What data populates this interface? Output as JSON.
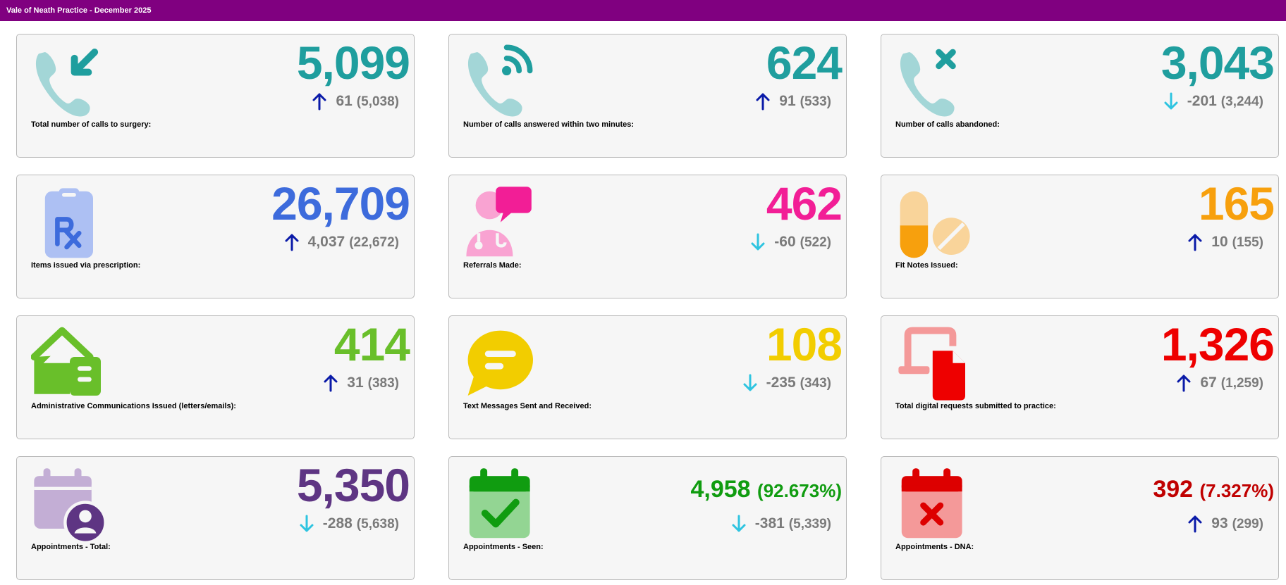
{
  "header": {
    "title": "Vale of Neath Practice - December 2025"
  },
  "colors": {
    "header_bg": "#800080",
    "arrow_up": "#0a1aa8",
    "arrow_down": "#2ec4e0",
    "muted": "#7a7a7a"
  },
  "cards": [
    {
      "label": "Total number of calls to surgery:",
      "value": "5,099",
      "value_pct": "",
      "change": "61",
      "previous": "(5,038)",
      "direction": "up",
      "value_color": "#1f9e9e",
      "icon": "phone-incoming-icon"
    },
    {
      "label": "Number of calls answered within two minutes:",
      "value": "624",
      "value_pct": "",
      "change": "91",
      "previous": "(533)",
      "direction": "up",
      "value_color": "#1f9e9e",
      "icon": "phone-signal-icon"
    },
    {
      "label": "Number of calls abandoned:",
      "value": "3,043",
      "value_pct": "",
      "change": "-201",
      "previous": "(3,244)",
      "direction": "down",
      "value_color": "#1f9e9e",
      "icon": "phone-missed-icon"
    },
    {
      "label": "Items issued via prescription:",
      "value": "26,709",
      "value_pct": "",
      "change": "4,037",
      "previous": "(22,672)",
      "direction": "up",
      "value_color": "#3d6bdc",
      "icon": "prescription-clipboard-icon"
    },
    {
      "label": "Referrals Made:",
      "value": "462",
      "value_pct": "",
      "change": "-60",
      "previous": "(522)",
      "direction": "down",
      "value_color": "#f21e96",
      "icon": "doctor-chat-icon"
    },
    {
      "label": "Fit Notes Issued:",
      "value": "165",
      "value_pct": "",
      "change": "10",
      "previous": "(155)",
      "direction": "up",
      "value_color": "#f7a00d",
      "icon": "pills-icon"
    },
    {
      "label": "Administrative Communications Issued (letters/emails):",
      "value": "414",
      "value_pct": "",
      "change": "31",
      "previous": "(383)",
      "direction": "up",
      "value_color": "#69bf2a",
      "icon": "mail-home-icon"
    },
    {
      "label": "Text Messages Sent and Received:",
      "value": "108",
      "value_pct": "",
      "change": "-235",
      "previous": "(343)",
      "direction": "down",
      "value_color": "#f2cd00",
      "icon": "speech-bubble-icon"
    },
    {
      "label": "Total digital requests submitted to practice:",
      "value": "1,326",
      "value_pct": "",
      "change": "67",
      "previous": "(1,259)",
      "direction": "up",
      "value_color": "#ee0000",
      "icon": "device-document-icon"
    },
    {
      "label": "Appointments - Total:",
      "value": "5,350",
      "value_pct": "",
      "change": "-288",
      "previous": "(5,638)",
      "direction": "down",
      "value_color": "#5e3583",
      "icon": "calendar-user-icon"
    },
    {
      "label": "Appointments - Seen:",
      "value": "4,958",
      "value_pct": "(92.673%)",
      "change": "-381",
      "previous": "(5,339)",
      "direction": "down",
      "value_color": "#109c10",
      "icon": "calendar-check-icon"
    },
    {
      "label": "Appointments - DNA:",
      "value": "392",
      "value_pct": "(7.327%)",
      "change": "93",
      "previous": "(299)",
      "direction": "up",
      "value_color": "#c00000",
      "icon": "calendar-cross-icon"
    }
  ]
}
